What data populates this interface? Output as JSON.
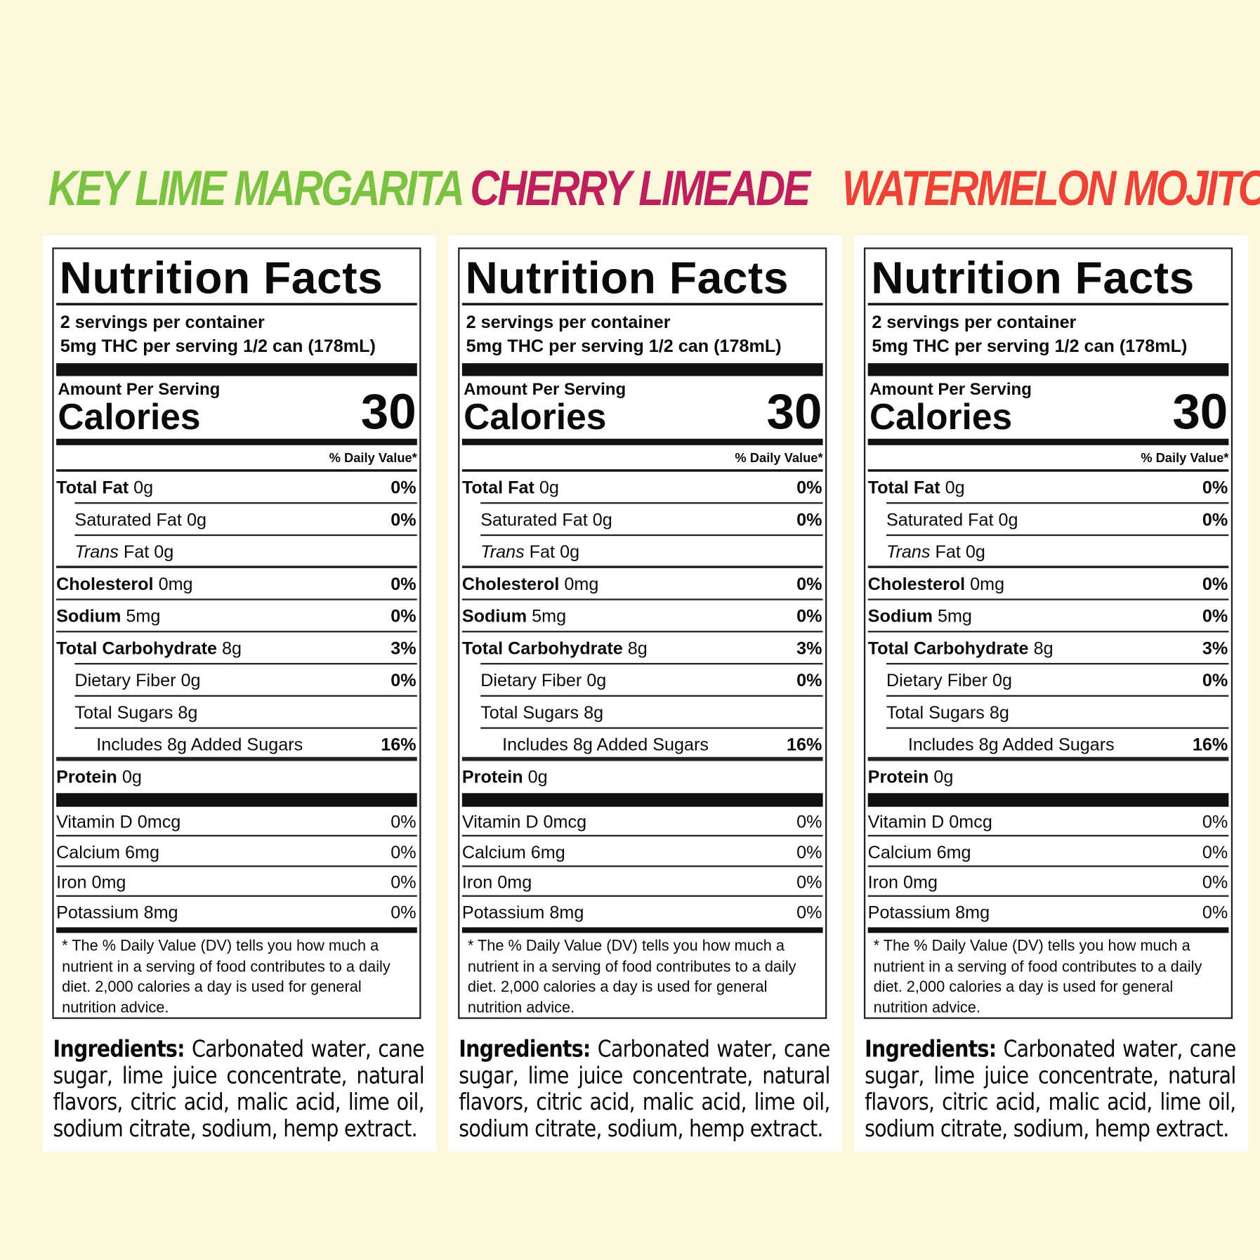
{
  "flavors": [
    {
      "name": "KEY LIME MARGARITA",
      "color": "#7cc242"
    },
    {
      "name": "CHERRY LIMEADE",
      "color": "#c01f5e"
    },
    {
      "name": "WATERMELON MOJITO",
      "color": "#ee4237"
    }
  ],
  "label": {
    "title": "Nutrition Facts",
    "servings": "2 servings per container",
    "serving_size": "5mg THC per serving 1/2 can (178mL)",
    "amount_per_serving": "Amount Per Serving",
    "calories_label": "Calories",
    "calories": "30",
    "daily_value_header": "% Daily Value*",
    "nutrients": [
      {
        "name": "Total Fat",
        "amount": "0g",
        "dv": "0%",
        "level": 0
      },
      {
        "name": "Saturated Fat",
        "amount": "0g",
        "dv": "0%",
        "level": 1
      },
      {
        "name": "Trans",
        "name_suffix": "Fat",
        "amount": "0g",
        "dv": "",
        "level": 1
      },
      {
        "name": "Cholesterol",
        "amount": "0mg",
        "dv": "0%",
        "level": 0
      },
      {
        "name": "Sodium",
        "amount": "5mg",
        "dv": "0%",
        "level": 0
      },
      {
        "name": "Total Carbohydrate",
        "amount": "8g",
        "dv": "3%",
        "level": 0
      },
      {
        "name": "Dietary Fiber",
        "amount": "0g",
        "dv": "0%",
        "level": 1
      },
      {
        "name": "Total Sugars",
        "amount": "8g",
        "dv": "",
        "level": 1
      },
      {
        "name": "Includes 8g Added Sugars",
        "amount": "",
        "dv": "16%",
        "level": 2
      },
      {
        "name": "Protein",
        "amount": "0g",
        "dv": "",
        "level": 0
      }
    ],
    "vitamins": [
      {
        "name": "Vitamin D 0mcg",
        "dv": "0%"
      },
      {
        "name": "Calcium 6mg",
        "dv": "0%"
      },
      {
        "name": "Iron 0mg",
        "dv": "0%"
      },
      {
        "name": "Potassium 8mg",
        "dv": "0%"
      }
    ],
    "footnote": "* The % Daily Value (DV) tells you how much a nutrient in a serving of food contributes to a daily diet. 2,000 calories a day is used for general nutrition advice."
  },
  "ingredients": {
    "heading": "Ingredients:",
    "text": "Carbonated water, cane sugar, lime juice concentrate, natural flavors, citric acid, malic acid, lime oil, sodium citrate, sodium, hemp extract."
  }
}
